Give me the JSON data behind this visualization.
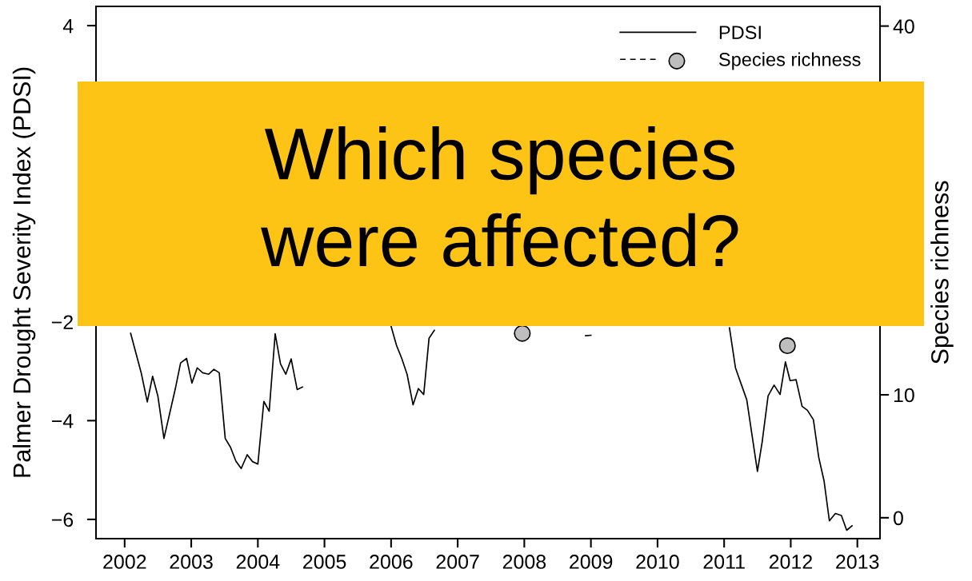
{
  "chart_data": {
    "type": "line",
    "ylabel": "Palmer Drought Severity Index (PDSI)",
    "y2label": "Species richness",
    "xlim": [
      2001.57,
      2013.34
    ],
    "xticks": [
      2002,
      2003,
      2004,
      2005,
      2006,
      2007,
      2008,
      2009,
      2010,
      2011,
      2012,
      2013
    ],
    "ylim": [
      -6.39,
      4.39
    ],
    "yticks": [
      -6,
      -4,
      -2,
      4
    ],
    "y2lim": [
      -1.7,
      41.6
    ],
    "y2ticks": [
      0,
      10,
      40
    ],
    "grid": false,
    "legend": "top right",
    "annotations": [
      "Which species\nwere affected?"
    ],
    "series": [
      {
        "name": "PDSI",
        "color": "#000000",
        "line_style": "solid",
        "marker": "none",
        "x": [
          2002.09,
          2002.25,
          2002.34,
          2002.42,
          2002.5,
          2002.59,
          2002.76,
          2002.84,
          2002.93,
          2003.01,
          2003.09,
          2003.17,
          2003.26,
          2003.34,
          2003.42,
          2003.51,
          2003.59,
          2003.67,
          2003.75,
          2003.84,
          2003.92,
          2004.0,
          2004.09,
          2004.17,
          2004.26,
          2004.34,
          2004.42,
          2004.5,
          2004.59,
          2004.67,
          2004.75,
          2004.83,
          2004.91,
          2004.97,
          2005.07,
          2005.17,
          2005.24,
          2005.3,
          2005.5,
          2005.56,
          2005.66,
          2005.76,
          2005.86,
          2005.93,
          2006.0,
          2006.08,
          2006.16,
          2006.24,
          2006.33,
          2006.41,
          2006.49,
          2006.57,
          2006.65,
          2006.73,
          2006.82,
          2006.9,
          2007.0,
          2007.1,
          2007.16,
          2007.25,
          2007.35,
          2007.45,
          2007.58,
          2007.66,
          2007.74,
          2007.9,
          2008.05,
          2008.14,
          2008.25,
          2008.4,
          2008.55,
          2008.7,
          2008.84,
          2008.92,
          2009.0,
          2009.08,
          2009.23,
          2009.31,
          2009.43,
          2009.52,
          2009.62,
          2009.78,
          2009.9,
          2010.04,
          2010.14,
          2010.24,
          2010.32,
          2010.41,
          2010.49,
          2010.57,
          2010.93,
          2011.08,
          2011.17,
          2011.34,
          2011.5,
          2011.57,
          2011.66,
          2011.75,
          2011.84,
          2011.92,
          2011.99,
          2012.08,
          2012.17,
          2012.25,
          2012.34,
          2012.42,
          2012.5,
          2012.58,
          2012.67,
          2012.76,
          2012.84,
          2012.92
        ],
        "values": [
          -2.23,
          -3.04,
          -3.62,
          -3.1,
          -3.51,
          -4.36,
          -3.36,
          -2.83,
          -2.74,
          -3.24,
          -2.93,
          -3.03,
          -3.06,
          -2.96,
          -3.03,
          -4.36,
          -4.54,
          -4.82,
          -4.97,
          -4.69,
          -4.83,
          -4.88,
          -3.61,
          -3.81,
          -2.24,
          -2.85,
          -3.06,
          -2.75,
          -3.37,
          -3.32,
          null,
          null,
          null,
          null,
          null,
          null,
          null,
          null,
          null,
          null,
          null,
          null,
          null,
          null,
          -2.09,
          -2.47,
          -2.74,
          -3.06,
          -3.68,
          -3.35,
          -3.47,
          -2.33,
          -2.17,
          null,
          null,
          null,
          null,
          null,
          null,
          null,
          null,
          null,
          null,
          null,
          null,
          null,
          null,
          null,
          null,
          null,
          null,
          null,
          null,
          -2.28,
          -2.27,
          null,
          null,
          null,
          null,
          null,
          null,
          null,
          null,
          null,
          null,
          null,
          null,
          null,
          null,
          null,
          null,
          -2.12,
          -2.93,
          -3.58,
          -5.03,
          -4.44,
          -3.5,
          -3.28,
          -3.47,
          -2.81,
          -3.19,
          -3.17,
          -3.71,
          -3.79,
          -3.98,
          -4.74,
          -5.22,
          -6.03,
          -5.88,
          -5.92,
          -6.22,
          -6.13
        ]
      },
      {
        "name": "Species richness",
        "type": "scatter",
        "color": "#bebebe",
        "axis": "y2",
        "line_style": "dashed",
        "marker": "circle",
        "x": [
          2007.97,
          2011.95
        ],
        "values": [
          15,
          14
        ]
      }
    ]
  }
}
